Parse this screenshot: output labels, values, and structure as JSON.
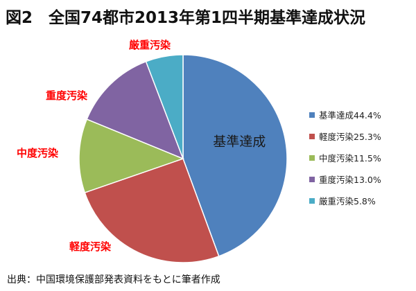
{
  "title": "図2　全国74都市2013年第1四半期基準達成状況",
  "source": "出典：中国環境保護部発表資料をもとに筆者作成",
  "chart_data": {
    "type": "pie",
    "slice_label": "基準達成",
    "series": [
      {
        "name": "基準達成",
        "legend": "基準達成44.4%",
        "value": 44.4,
        "color": "#4f81bd"
      },
      {
        "name": "軽度汚染",
        "legend": "軽度汚染25.3%",
        "value": 25.3,
        "color": "#c0504d"
      },
      {
        "name": "中度汚染",
        "legend": "中度汚染11.5%",
        "value": 11.5,
        "color": "#9bbb59"
      },
      {
        "name": "重度汚染",
        "legend": "重度汚染13.0%",
        "value": 13.0,
        "color": "#8064a2"
      },
      {
        "name": "厳重汚染",
        "legend": "厳重汚染5.8%",
        "value": 5.8,
        "color": "#4bacc6"
      }
    ],
    "callouts": [
      "軽度汚染",
      "中度汚染",
      "重度汚染",
      "厳重汚染"
    ],
    "legend_position": "right"
  }
}
